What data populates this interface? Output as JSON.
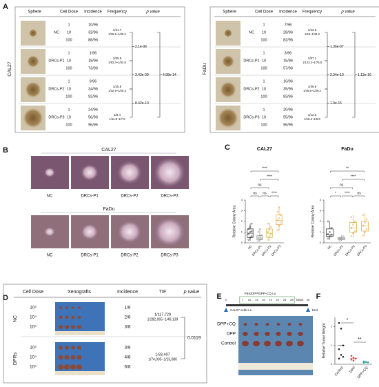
{
  "panel_labels": [
    "A",
    "B",
    "C",
    "D",
    "E",
    "F"
  ],
  "panel_a": [
    {
      "cell_line": "CAL27",
      "headers": [
        "Sphere",
        "Cell Dose",
        "Incidence",
        "Frequency",
        "p value"
      ],
      "groups": [
        {
          "name": "NC",
          "rows": [
            [
              "1",
              "10/96"
            ],
            [
              "10",
              "32/96"
            ],
            [
              "100",
              "88/96"
            ]
          ],
          "frequency": "1/31.7",
          "ci": "1/35.9~1/28.2"
        },
        {
          "name": "DRCs-P1",
          "rows": [
            [
              "1",
              "1/96"
            ],
            [
              "10",
              "18/96"
            ],
            [
              "100",
              "73/96"
            ]
          ],
          "frequency": "1/65.9",
          "ci": "1/82.3~1/52.8"
        },
        {
          "name": "DRCs-P2",
          "rows": [
            [
              "1",
              "9/96"
            ],
            [
              "10",
              "34/96"
            ],
            [
              "100",
              "92/96"
            ]
          ],
          "frequency": "1/25.8",
          "ci": "1/32.9~1/20.3"
        },
        {
          "name": "DRCs-P3",
          "rows": [
            [
              "1",
              "24/96"
            ],
            [
              "10",
              "56/96"
            ],
            [
              "100",
              "96/96"
            ]
          ],
          "frequency": "1/9.4",
          "ci": "1/11.8~1/7.5"
        }
      ],
      "p_values": [
        "2.1e-06",
        "3.43e-09",
        "8.42e-10",
        "4.98e-14"
      ]
    },
    {
      "cell_line": "FaDu",
      "headers": [
        "Sphere",
        "Cell Dose",
        "Incidence",
        "Frequency",
        "p value"
      ],
      "groups": [
        {
          "name": "NC",
          "rows": [
            [
              "1",
              "7/96"
            ],
            [
              "10",
              "28/96"
            ],
            [
              "100",
              "82/96"
            ]
          ],
          "frequency": "1/42.5",
          "ci": "1/53~1/34.2"
        },
        {
          "name": "DRCs-P1",
          "rows": [
            [
              "1",
              "3/96"
            ],
            [
              "10",
              "15/96"
            ],
            [
              "100",
              "57/96"
            ]
          ],
          "frequency": "1/97.1",
          "ci": "1/123.2~1/76.5"
        },
        {
          "name": "DRCs-P2",
          "rows": [
            [
              "1",
              "10/96"
            ],
            [
              "10",
              "35/96"
            ],
            [
              "100",
              "83/96"
            ]
          ],
          "frequency": "1/36.5",
          "ci": "1/45.6~1/29.2"
        },
        {
          "name": "DRCs-P3",
          "rows": [
            [
              "1",
              "20/96"
            ],
            [
              "10",
              "55/96"
            ],
            [
              "100",
              "96/96"
            ]
          ],
          "frequency": "1/12.6",
          "ci": "1/16.2~1/9.8"
        }
      ],
      "p_values": [
        "1.36e-07",
        "2.34e-10",
        "1.9e-15",
        "1.13e-16"
      ]
    }
  ],
  "panel_b": {
    "rows": [
      "CAL27",
      "FaDu"
    ],
    "labels": [
      "NC",
      "DRCs-P1",
      "DRCs-P2",
      "DRCs-P3"
    ]
  },
  "chart_data": [
    {
      "type": "box",
      "title": "CAL27",
      "y_label": "Relative Colony Area",
      "categories": [
        "NC",
        "DRCs-P1",
        "DRCs-P2",
        "DRCs-P3"
      ],
      "colors": [
        "#222222",
        "#8c8c8c",
        "#d4a52a",
        "#f0a030"
      ],
      "ylim": [
        0,
        4
      ],
      "yticks": [
        0,
        1,
        2,
        3,
        4
      ],
      "boxes": [
        [
          0.2,
          0.5,
          0.9,
          1.3,
          1.8
        ],
        [
          0.1,
          0.3,
          0.45,
          0.7,
          1.3
        ],
        [
          0.2,
          0.5,
          0.9,
          1.3,
          1.9
        ],
        [
          1.1,
          1.7,
          2.1,
          2.6,
          3.4
        ]
      ],
      "points": [
        [
          0.3,
          0.5,
          0.6,
          0.8,
          1.0,
          1.1,
          1.3,
          1.5,
          1.8
        ],
        [
          0.2,
          0.3,
          0.4,
          0.5,
          0.6,
          0.7,
          1.0,
          1.3
        ],
        [
          0.3,
          0.6,
          0.8,
          1.0,
          1.2,
          1.5,
          1.8
        ],
        [
          1.2,
          1.6,
          1.9,
          2.1,
          2.3,
          2.6,
          2.9,
          3.3
        ]
      ],
      "significance": [
        "ns",
        "ns",
        "****",
        "ns",
        "****",
        "****"
      ]
    },
    {
      "type": "box",
      "title": "FaDu",
      "y_label": "Relative Colony Area",
      "categories": [
        "NC",
        "DRCs-P1",
        "DRCs-P2",
        "DRCs-P3"
      ],
      "colors": [
        "#222222",
        "#8c8c8c",
        "#d4a52a",
        "#f0a030"
      ],
      "ylim": [
        0,
        4
      ],
      "yticks": [
        0,
        1,
        2,
        3,
        4
      ],
      "boxes": [
        [
          0.3,
          0.6,
          0.8,
          1.3,
          2.0
        ],
        [
          0.2,
          0.3,
          0.4,
          0.5,
          0.7
        ],
        [
          0.5,
          1.0,
          1.4,
          1.9,
          2.6
        ],
        [
          0.6,
          1.1,
          1.6,
          2.0,
          2.8
        ]
      ],
      "points": [
        [
          0.4,
          0.6,
          0.7,
          0.8,
          1.0,
          1.4,
          2.0
        ],
        [
          0.2,
          0.3,
          0.35,
          0.4,
          0.5,
          0.6
        ],
        [
          0.6,
          0.9,
          1.1,
          1.4,
          1.7,
          2.0,
          2.4
        ],
        [
          0.7,
          1.0,
          1.3,
          1.6,
          1.9,
          2.2,
          2.6
        ]
      ],
      "significance": [
        "*",
        "****",
        "ns",
        "ns",
        "****",
        "**"
      ]
    },
    {
      "type": "dot",
      "y_label": "Relative Tumor Weight",
      "categories": [
        "Control",
        "DPP",
        "DPP+CQ"
      ],
      "colors": [
        "#222222",
        "#e0404a",
        "#2aa7a0"
      ],
      "ylim": [
        0,
        2.5
      ],
      "yticks": [
        0,
        1,
        2
      ],
      "points": [
        [
          2.2,
          1.9,
          1.0,
          0.8,
          0.5,
          0.4,
          0.3
        ],
        [
          0.45,
          0.35,
          0.3,
          0.25,
          0.2
        ],
        [
          0.15,
          0.12,
          0.1,
          0.08
        ]
      ],
      "means": [
        1.0,
        0.31,
        0.11
      ],
      "significance": [
        "*",
        "**"
      ]
    }
  ],
  "panel_d": {
    "headers": [
      "Cell Dose",
      "Xenografts",
      "Incidence",
      "TIF",
      "p value"
    ],
    "groups": [
      {
        "name": "NC",
        "doses": [
          "10³",
          "10⁴",
          "10⁵"
        ],
        "incidence": [
          "1/8",
          "2/8",
          "3/8"
        ],
        "tif": "1/117,729",
        "ci": "1/282,065~1/49,139"
      },
      {
        "name": "DPRs",
        "doses": [
          "10³",
          "10⁴",
          "10⁵"
        ],
        "incidence": [
          "3/8",
          "4/8",
          "6/8"
        ],
        "tif": "1/33,407",
        "ci": "1/74,005~1/15,080"
      }
    ],
    "p_value": "0.0119"
  },
  "panel_e": {
    "treatment": "PBS/DPP/DPP+CQ i.p.",
    "days": [
      0,
      7,
      10,
      13,
      16,
      19,
      22,
      25,
      28,
      35
    ],
    "days_label": "Days",
    "end": "End",
    "injection": "CAL27 cells s.c.",
    "groups": [
      "DPP+CQ",
      "DPP",
      "Control"
    ]
  }
}
